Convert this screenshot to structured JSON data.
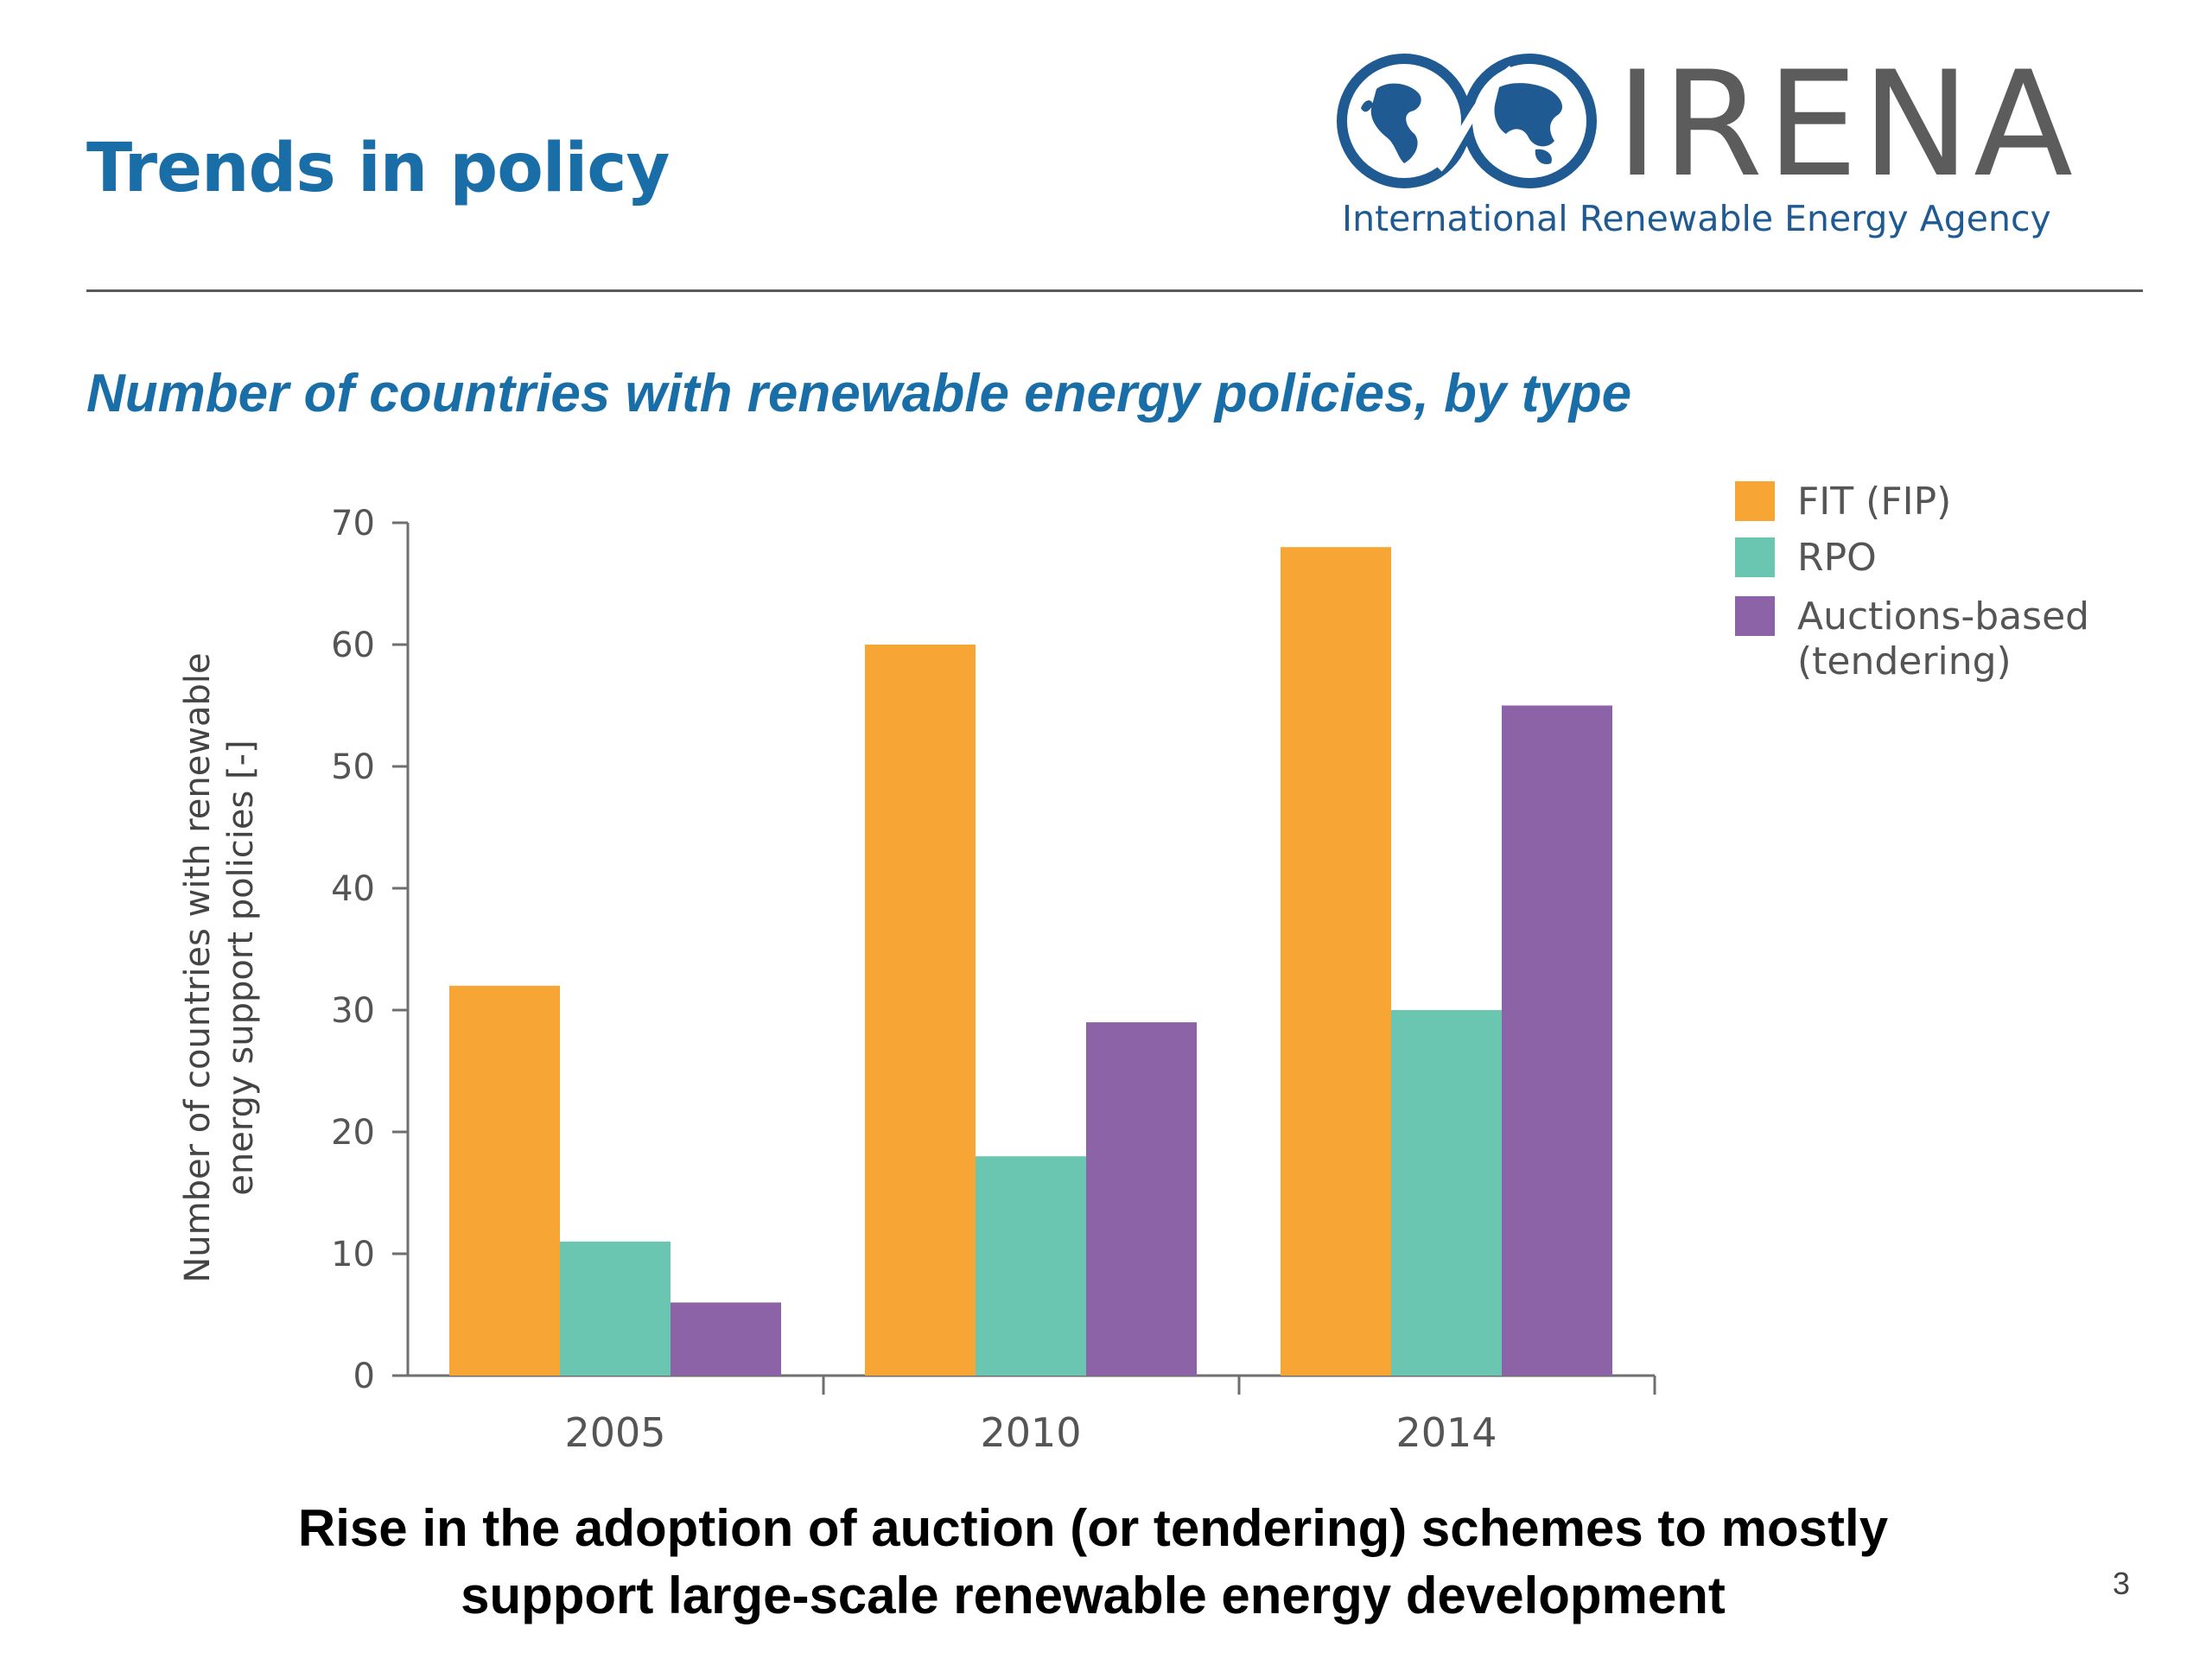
{
  "slide": {
    "title": "Trends in policy",
    "caption_line1": "Rise in the adoption of auction (or tendering) schemes to mostly",
    "caption_line2": "support large-scale renewable energy development",
    "page_number": "3"
  },
  "logo": {
    "name": "IRENA",
    "subtitle": "International Renewable Energy Agency",
    "icon": "globe-infinity-icon",
    "colors": {
      "globe": "#1f5a92",
      "text": "#5c5c5c"
    }
  },
  "chart_data": {
    "type": "bar",
    "title": "Number of countries with renewable energy policies, by type",
    "ylabel_line1": "Number of countries with renewable",
    "ylabel_line2": "energy support policies [-]",
    "xlabel": "",
    "categories": [
      "2005",
      "2010",
      "2014"
    ],
    "ylim": [
      0,
      70
    ],
    "yticks": [
      0,
      10,
      20,
      30,
      40,
      50,
      60,
      70
    ],
    "grid": false,
    "legend_position": "top-right",
    "series": [
      {
        "name": "FIT (FIP)",
        "color": "#f7a535",
        "values": [
          32,
          60,
          68
        ]
      },
      {
        "name": "RPO",
        "color": "#6bc6b1",
        "values": [
          11,
          18,
          30
        ]
      },
      {
        "name": "Auctions-based (tendering)",
        "name_line1": "Auctions-based",
        "name_line2": "(tendering)",
        "color": "#8d63a8",
        "values": [
          6,
          29,
          55
        ]
      }
    ]
  }
}
